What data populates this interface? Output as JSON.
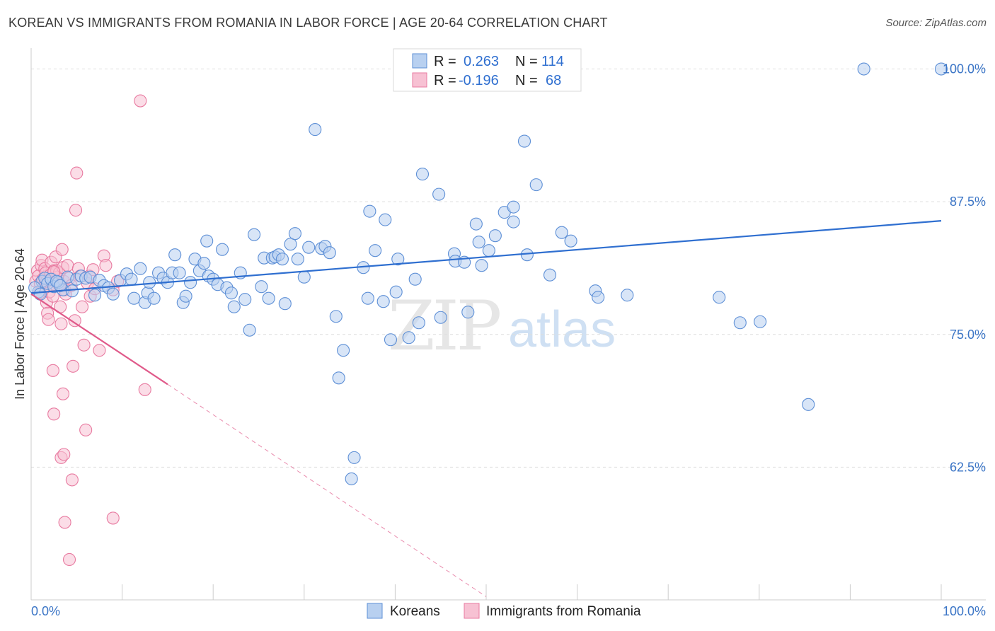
{
  "title": "KOREAN VS IMMIGRANTS FROM ROMANIA IN LABOR FORCE | AGE 20-64 CORRELATION CHART",
  "source": "Source: ZipAtlas.com",
  "watermark": {
    "zip": "ZIP",
    "atlas": "atlas"
  },
  "legend_top": [
    {
      "r_label": "R =",
      "r_value": "0.263",
      "n_label": "N =",
      "n_value": "114"
    },
    {
      "r_label": "R =",
      "r_value": "-0.196",
      "n_label": "N =",
      "n_value": "68"
    }
  ],
  "legend_bottom": [
    "Koreans",
    "Immigrants from Romania"
  ],
  "colors": {
    "koreans_fill": "#b8d0f0",
    "koreans_stroke": "#5d8fd6",
    "koreans_line": "#2f6fd0",
    "romania_fill": "#f7c1d3",
    "romania_stroke": "#e87aa0",
    "romania_line": "#e05a8a",
    "tick_label": "#3b75c6",
    "grid": "#dddddd"
  },
  "chart_data": {
    "type": "scatter",
    "title": "KOREAN VS IMMIGRANTS FROM ROMANIA IN LABOR FORCE | AGE 20-64 CORRELATION CHART",
    "xlabel": "",
    "ylabel": "In Labor Force | Age 20-64",
    "x_tick_labels": [
      "0.0%",
      "100.0%"
    ],
    "y_tick_labels": [
      "100.0%",
      "87.5%",
      "75.0%",
      "62.5%"
    ],
    "y_ticks": [
      100.0,
      87.5,
      75.0,
      62.5
    ],
    "xlim": [
      0,
      100
    ],
    "ylim": [
      50,
      101.5
    ],
    "grid": "horizontal dashed",
    "legend": "top-center",
    "series": [
      {
        "name": "Koreans",
        "R": 0.263,
        "N": 114,
        "trend": {
          "x0": 0,
          "y0": 78.9,
          "x1": 100,
          "y1": 85.7
        },
        "points": [
          [
            0.8,
            79.0
          ],
          [
            1.2,
            80.0
          ],
          [
            1.5,
            80.3
          ],
          [
            1.8,
            79.8
          ],
          [
            2.2,
            80.2
          ],
          [
            2.5,
            79.5
          ],
          [
            3.0,
            79.9
          ],
          [
            3.5,
            79.2
          ],
          [
            4.0,
            80.4
          ],
          [
            4.5,
            79.1
          ],
          [
            5.0,
            80.2
          ],
          [
            5.5,
            80.5
          ],
          [
            6.0,
            80.3
          ],
          [
            6.5,
            80.4
          ],
          [
            7.0,
            78.7
          ],
          [
            7.5,
            80.1
          ],
          [
            8.0,
            79.6
          ],
          [
            8.5,
            79.4
          ],
          [
            9.0,
            78.8
          ],
          [
            9.8,
            80.1
          ],
          [
            10.5,
            80.7
          ],
          [
            11.0,
            80.2
          ],
          [
            11.3,
            78.4
          ],
          [
            12.0,
            81.2
          ],
          [
            12.5,
            78.0
          ],
          [
            12.8,
            78.9
          ],
          [
            13.0,
            79.9
          ],
          [
            13.5,
            78.4
          ],
          [
            14.0,
            80.8
          ],
          [
            14.5,
            80.3
          ],
          [
            15.0,
            79.9
          ],
          [
            15.5,
            80.8
          ],
          [
            15.8,
            82.5
          ],
          [
            16.3,
            80.8
          ],
          [
            16.7,
            78.0
          ],
          [
            17.0,
            78.6
          ],
          [
            17.5,
            79.9
          ],
          [
            18.0,
            82.1
          ],
          [
            18.5,
            81.0
          ],
          [
            19.0,
            81.7
          ],
          [
            19.3,
            83.8
          ],
          [
            19.5,
            80.5
          ],
          [
            20.0,
            80.2
          ],
          [
            20.5,
            79.7
          ],
          [
            21.0,
            83.0
          ],
          [
            21.5,
            79.4
          ],
          [
            22.0,
            78.9
          ],
          [
            22.3,
            77.6
          ],
          [
            23.0,
            80.8
          ],
          [
            23.5,
            78.3
          ],
          [
            24.0,
            75.4
          ],
          [
            24.5,
            84.4
          ],
          [
            25.3,
            79.5
          ],
          [
            25.6,
            82.2
          ],
          [
            26.1,
            78.4
          ],
          [
            26.5,
            82.2
          ],
          [
            26.8,
            82.3
          ],
          [
            27.2,
            82.5
          ],
          [
            27.6,
            82.1
          ],
          [
            27.9,
            77.9
          ],
          [
            28.5,
            83.5
          ],
          [
            29.0,
            84.5
          ],
          [
            29.3,
            82.1
          ],
          [
            30.0,
            80.4
          ],
          [
            30.5,
            83.2
          ],
          [
            31.2,
            94.3
          ],
          [
            31.9,
            83.1
          ],
          [
            32.3,
            83.3
          ],
          [
            32.8,
            82.7
          ],
          [
            33.5,
            76.7
          ],
          [
            34.3,
            73.5
          ],
          [
            33.8,
            70.9
          ],
          [
            35.2,
            61.4
          ],
          [
            35.5,
            63.4
          ],
          [
            36.5,
            81.3
          ],
          [
            37.0,
            78.4
          ],
          [
            37.2,
            86.6
          ],
          [
            37.8,
            82.9
          ],
          [
            38.7,
            78.1
          ],
          [
            38.9,
            85.8
          ],
          [
            39.5,
            74.5
          ],
          [
            40.1,
            79.0
          ],
          [
            40.3,
            82.1
          ],
          [
            41.5,
            74.7
          ],
          [
            42.2,
            80.2
          ],
          [
            42.6,
            76.1
          ],
          [
            43.0,
            90.1
          ],
          [
            44.8,
            88.2
          ],
          [
            45.0,
            76.6
          ],
          [
            46.5,
            82.6
          ],
          [
            46.6,
            81.9
          ],
          [
            47.6,
            81.8
          ],
          [
            48.0,
            77.1
          ],
          [
            48.9,
            85.4
          ],
          [
            49.2,
            83.7
          ],
          [
            49.5,
            81.5
          ],
          [
            50.3,
            82.9
          ],
          [
            51.0,
            84.3
          ],
          [
            52.0,
            86.5
          ],
          [
            53.0,
            85.6
          ],
          [
            53.0,
            87.0
          ],
          [
            54.2,
            93.2
          ],
          [
            54.5,
            82.5
          ],
          [
            55.5,
            89.1
          ],
          [
            57.0,
            80.6
          ],
          [
            58.3,
            84.6
          ],
          [
            59.3,
            83.8
          ],
          [
            62.0,
            79.1
          ],
          [
            62.3,
            78.5
          ],
          [
            65.5,
            78.7
          ],
          [
            75.6,
            78.5
          ],
          [
            77.9,
            76.1
          ],
          [
            80.1,
            76.2
          ],
          [
            85.4,
            68.4
          ],
          [
            91.5,
            100.0
          ],
          [
            100.0,
            100.0
          ],
          [
            0.4,
            79.4
          ],
          [
            2.8,
            80.0
          ],
          [
            3.2,
            79.6
          ],
          [
            1.0,
            78.8
          ]
        ]
      },
      {
        "name": "Immigrants from Romania",
        "R": -0.196,
        "N": 68,
        "trend": {
          "x0": 0,
          "y0": 78.8,
          "x1": 15,
          "y1": 70.3
        },
        "trend_dashed": {
          "x0": 15,
          "y0": 70.3,
          "x1": 50,
          "y1": 50.3
        },
        "points": [
          [
            0.5,
            80.0
          ],
          [
            0.7,
            81.0
          ],
          [
            0.8,
            80.5
          ],
          [
            1.0,
            79.8
          ],
          [
            1.1,
            81.5
          ],
          [
            1.2,
            82.0
          ],
          [
            1.3,
            80.2
          ],
          [
            1.4,
            79.5
          ],
          [
            1.5,
            81.2
          ],
          [
            1.6,
            80.8
          ],
          [
            1.7,
            78.0
          ],
          [
            1.8,
            77.0
          ],
          [
            1.9,
            76.4
          ],
          [
            2.0,
            79.0
          ],
          [
            2.1,
            80.6
          ],
          [
            2.2,
            81.8
          ],
          [
            2.3,
            80.1
          ],
          [
            2.4,
            78.6
          ],
          [
            2.5,
            81.0
          ],
          [
            2.6,
            79.7
          ],
          [
            2.7,
            82.3
          ],
          [
            2.8,
            81.0
          ],
          [
            2.9,
            80.4
          ],
          [
            3.0,
            79.9
          ],
          [
            3.1,
            80.8
          ],
          [
            3.2,
            77.6
          ],
          [
            3.3,
            76.0
          ],
          [
            3.4,
            83.0
          ],
          [
            3.5,
            81.3
          ],
          [
            3.6,
            80.0
          ],
          [
            3.7,
            79.2
          ],
          [
            3.8,
            78.8
          ],
          [
            4.0,
            81.5
          ],
          [
            4.2,
            80.3
          ],
          [
            4.4,
            79.6
          ],
          [
            4.6,
            72.0
          ],
          [
            4.8,
            76.3
          ],
          [
            5.0,
            90.2
          ],
          [
            4.9,
            86.7
          ],
          [
            5.2,
            81.2
          ],
          [
            5.4,
            80.5
          ],
          [
            5.6,
            77.6
          ],
          [
            5.8,
            74.0
          ],
          [
            6.0,
            66.0
          ],
          [
            6.2,
            79.8
          ],
          [
            6.4,
            80.5
          ],
          [
            6.5,
            78.6
          ],
          [
            6.8,
            81.1
          ],
          [
            7.0,
            79.3
          ],
          [
            7.5,
            73.5
          ],
          [
            8.0,
            82.4
          ],
          [
            8.2,
            81.5
          ],
          [
            9.0,
            79.2
          ],
          [
            9.5,
            80.0
          ],
          [
            12.0,
            97.0
          ],
          [
            12.5,
            69.8
          ],
          [
            3.5,
            69.4
          ],
          [
            2.4,
            71.6
          ],
          [
            2.5,
            67.5
          ],
          [
            3.3,
            63.4
          ],
          [
            3.6,
            63.7
          ],
          [
            4.5,
            61.3
          ],
          [
            3.7,
            57.3
          ],
          [
            9.0,
            57.7
          ],
          [
            4.2,
            53.8
          ],
          [
            2.5,
            80.9
          ],
          [
            1.7,
            80.0
          ],
          [
            0.9,
            78.9
          ]
        ]
      }
    ]
  }
}
